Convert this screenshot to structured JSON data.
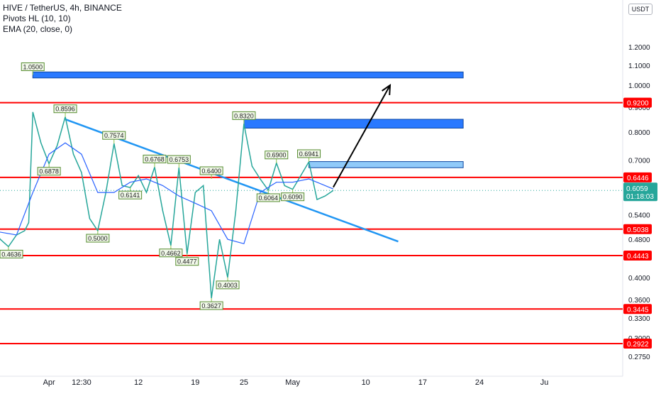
{
  "header": {
    "symbol_line": "HIVE / TetherUS, 4h, BINANCE",
    "indicator_1": "Pivots HL (10, 10)",
    "indicator_2": "EMA (20, close, 0)",
    "currency_badge": "USDT"
  },
  "chart_data": {
    "type": "line",
    "title": "HIVE / TetherUS, 4h, BINANCE",
    "y_scale": "log",
    "ylim": [
      0.2587,
      1.5
    ],
    "y_tick_labels": [
      "1.2000",
      "1.1000",
      "1.0000",
      "0.9000",
      "0.8000",
      "0.7000",
      "0.5400",
      "0.4800",
      "0.4000",
      "0.3600",
      "0.3300",
      "0.3000",
      "0.2750"
    ],
    "y_tick_values": [
      1.2,
      1.1,
      1.0,
      0.9,
      0.8,
      0.7,
      0.54,
      0.48,
      0.4,
      0.36,
      0.33,
      0.3,
      0.275
    ],
    "x_tick_labels": [
      "Apr",
      "12:30",
      "12",
      "19",
      "25",
      "May",
      "10",
      "17",
      "24",
      "Ju"
    ],
    "x_tick_dates": [
      "2021-04-01",
      "2021-04-05",
      "2021-04-12",
      "2021-04-19",
      "2021-04-25",
      "2021-05-01",
      "2021-05-10",
      "2021-05-17",
      "2021-05-24",
      "2021-06-01"
    ],
    "grid": false,
    "price_series": {
      "name": "HIVE / TetherUS",
      "color": "#26a69a",
      "x": [
        "2021-03-25",
        "2021-03-26",
        "2021-03-27",
        "2021-03-28",
        "2021-03-29",
        "2021-03-29T12:00",
        "2021-03-30",
        "2021-03-31",
        "2021-04-01",
        "2021-04-02",
        "2021-04-03",
        "2021-04-04",
        "2021-04-05",
        "2021-04-06",
        "2021-04-07",
        "2021-04-08",
        "2021-04-09",
        "2021-04-10",
        "2021-04-11",
        "2021-04-12",
        "2021-04-13",
        "2021-04-14",
        "2021-04-15",
        "2021-04-16",
        "2021-04-17",
        "2021-04-18",
        "2021-04-19",
        "2021-04-20",
        "2021-04-21",
        "2021-04-22",
        "2021-04-23",
        "2021-04-24",
        "2021-04-25",
        "2021-04-26",
        "2021-04-27",
        "2021-04-28",
        "2021-04-29",
        "2021-04-30",
        "2021-05-01",
        "2021-05-02",
        "2021-05-03",
        "2021-05-04",
        "2021-05-05",
        "2021-05-06"
      ],
      "y": [
        0.51,
        0.48,
        0.4636,
        0.49,
        0.5,
        0.52,
        0.88,
        0.76,
        0.6878,
        0.75,
        0.8596,
        0.72,
        0.66,
        0.53,
        0.5,
        0.6,
        0.7574,
        0.62,
        0.6141,
        0.65,
        0.6,
        0.6768,
        0.55,
        0.4662,
        0.6753,
        0.4477,
        0.6,
        0.62,
        0.3627,
        0.48,
        0.4003,
        0.55,
        0.832,
        0.68,
        0.64,
        0.6064,
        0.69,
        0.62,
        0.609,
        0.65,
        0.6941,
        0.58,
        0.59,
        0.6059
      ]
    },
    "ema_series": {
      "name": "EMA (20, close, 0)",
      "color": "#2962ff",
      "x": [
        "2021-03-25",
        "2021-03-28",
        "2021-03-30",
        "2021-04-01",
        "2021-04-03",
        "2021-04-05",
        "2021-04-07",
        "2021-04-09",
        "2021-04-11",
        "2021-04-13",
        "2021-04-15",
        "2021-04-17",
        "2021-04-19",
        "2021-04-21",
        "2021-04-23",
        "2021-04-25",
        "2021-04-27",
        "2021-04-29",
        "2021-05-01",
        "2021-05-03",
        "2021-05-05",
        "2021-05-06"
      ],
      "y": [
        0.5,
        0.49,
        0.6,
        0.72,
        0.76,
        0.72,
        0.6,
        0.6,
        0.63,
        0.64,
        0.62,
        0.59,
        0.57,
        0.55,
        0.48,
        0.47,
        0.6,
        0.63,
        0.63,
        0.64,
        0.62,
        0.61
      ]
    },
    "pivot_labels": [
      {
        "label": "1.0500",
        "x": "2021-03-30",
        "y": 1.05,
        "kind": "high"
      },
      {
        "label": "0.8596",
        "x": "2021-04-03",
        "y": 0.8596,
        "kind": "high"
      },
      {
        "label": "0.6878",
        "x": "2021-04-01",
        "y": 0.6878,
        "kind": "low"
      },
      {
        "label": "0.7574",
        "x": "2021-04-09",
        "y": 0.7574,
        "kind": "high"
      },
      {
        "label": "0.6141",
        "x": "2021-04-11",
        "y": 0.6141,
        "kind": "low"
      },
      {
        "label": "0.5000",
        "x": "2021-04-07",
        "y": 0.5,
        "kind": "low"
      },
      {
        "label": "0.6768",
        "x": "2021-04-14",
        "y": 0.6768,
        "kind": "high"
      },
      {
        "label": "0.6753",
        "x": "2021-04-17",
        "y": 0.6753,
        "kind": "high"
      },
      {
        "label": "0.6400",
        "x": "2021-04-21",
        "y": 0.64,
        "kind": "high"
      },
      {
        "label": "0.4662",
        "x": "2021-04-16",
        "y": 0.4662,
        "kind": "low"
      },
      {
        "label": "0.4477",
        "x": "2021-04-18",
        "y": 0.4477,
        "kind": "low"
      },
      {
        "label": "0.3627",
        "x": "2021-04-21",
        "y": 0.3627,
        "kind": "low"
      },
      {
        "label": "0.4003",
        "x": "2021-04-23",
        "y": 0.4003,
        "kind": "low"
      },
      {
        "label": "0.8320",
        "x": "2021-04-25",
        "y": 0.832,
        "kind": "high"
      },
      {
        "label": "0.6900",
        "x": "2021-04-29",
        "y": 0.69,
        "kind": "high"
      },
      {
        "label": "0.6941",
        "x": "2021-05-03",
        "y": 0.6941,
        "kind": "high"
      },
      {
        "label": "0.6064",
        "x": "2021-04-28",
        "y": 0.6064,
        "kind": "low"
      },
      {
        "label": "0.6090",
        "x": "2021-05-01",
        "y": 0.609,
        "kind": "low"
      },
      {
        "label": "0.4636",
        "x": "2021-03-27",
        "y": 0.4636,
        "kind": "low"
      }
    ],
    "horizontal_levels": [
      {
        "value": 0.92,
        "label": "0.9200",
        "color": "#ff0000"
      },
      {
        "value": 0.6446,
        "label": "0.6446",
        "color": "#ff0000"
      },
      {
        "value": 0.5038,
        "label": "0.5038",
        "color": "#ff0000"
      },
      {
        "value": 0.4443,
        "label": "0.4443",
        "color": "#ff0000"
      },
      {
        "value": 0.3445,
        "label": "0.3445",
        "color": "#ff0000"
      },
      {
        "value": 0.2922,
        "label": "0.2922",
        "color": "#ff0000"
      }
    ],
    "current_price": {
      "value": 0.6059,
      "label": "0.6059",
      "countdown": "01:18:03",
      "color": "#26a69a"
    },
    "target_zones": [
      {
        "x_from": "2021-03-30",
        "x_to": "2021-05-22",
        "y_low": 1.035,
        "y_high": 1.065,
        "color": "#2979ff"
      },
      {
        "x_from": "2021-04-25",
        "x_to": "2021-05-22",
        "y_low": 0.815,
        "y_high": 0.85,
        "color": "#2979ff"
      },
      {
        "x_from": "2021-05-03",
        "x_to": "2021-05-22",
        "y_low": 0.675,
        "y_high": 0.695,
        "color": "#90caf9"
      }
    ],
    "trendline": {
      "x_from": "2021-04-03",
      "y_from": 0.85,
      "x_to": "2021-05-14",
      "y_to": 0.475,
      "color": "#2196f3"
    },
    "arrow": {
      "x_from": "2021-05-06",
      "y_from": 0.615,
      "x_to": "2021-05-13",
      "y_to": 1.0,
      "color": "#000000"
    }
  }
}
